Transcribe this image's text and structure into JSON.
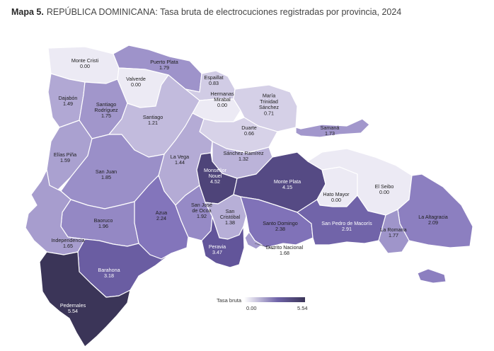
{
  "title": {
    "prefix": "Mapa 5.",
    "text": "REPÚBLICA DOMINICANA: Tasa bruta de electrocuciones registradas por provincia, 2024"
  },
  "legend": {
    "title": "Tasa bruta",
    "min": "0.00",
    "max": "5.54",
    "color_low": "#eceaf4",
    "color_high": "#3b3558"
  },
  "provinces": [
    {
      "id": "monte-cristi",
      "name": "Monte Cristi",
      "value": "0.00"
    },
    {
      "id": "puerto-plata",
      "name": "Puerto Plata",
      "value": "1.79"
    },
    {
      "id": "valverde",
      "name": "Valverde",
      "value": "0.00"
    },
    {
      "id": "espaillat",
      "name": "Espaillat",
      "value": "0.83"
    },
    {
      "id": "dajabon",
      "name": "Dajabón",
      "value": "1.49"
    },
    {
      "id": "santiago-rodriguez",
      "name": "Santiago Rodríguez",
      "value": "1.75"
    },
    {
      "id": "hermanas-mirabal",
      "name": "Hermanas Mirabal",
      "value": "0.00"
    },
    {
      "id": "maria-trinidad-sanchez",
      "name": "María Trinidad Sánchez",
      "value": "0.71"
    },
    {
      "id": "santiago",
      "name": "Santiago",
      "value": "1.21"
    },
    {
      "id": "duarte",
      "name": "Duarte",
      "value": "0.66"
    },
    {
      "id": "samana",
      "name": "Samaná",
      "value": "1.73"
    },
    {
      "id": "elias-pina",
      "name": "Elías Piña",
      "value": "1.59"
    },
    {
      "id": "la-vega",
      "name": "La Vega",
      "value": "1.44"
    },
    {
      "id": "sanchez-ramirez",
      "name": "Sánchez Ramírez",
      "value": "1.32"
    },
    {
      "id": "monsenor-nouel",
      "name": "Monseñor Nouel",
      "value": "4.52"
    },
    {
      "id": "san-juan",
      "name": "San Juan",
      "value": "1.85"
    },
    {
      "id": "monte-plata",
      "name": "Monte Plata",
      "value": "4.15"
    },
    {
      "id": "hato-mayor",
      "name": "Hato Mayor",
      "value": "0.00"
    },
    {
      "id": "el-seibo",
      "name": "El Seibo",
      "value": "0.00"
    },
    {
      "id": "la-altagracia",
      "name": "La Altagracia",
      "value": "2.09"
    },
    {
      "id": "azua",
      "name": "Azua",
      "value": "2.24"
    },
    {
      "id": "san-jose-de-ocoa",
      "name": "San José de Ocoa",
      "value": "1.92"
    },
    {
      "id": "san-cristobal",
      "name": "San Cristóbal",
      "value": "1.38"
    },
    {
      "id": "baoruco",
      "name": "Baoruco",
      "value": "1.96"
    },
    {
      "id": "santo-domingo",
      "name": "Santo Domingo",
      "value": "2.38"
    },
    {
      "id": "san-pedro-de-macoris",
      "name": "San Pedro de Macorís",
      "value": "2.91"
    },
    {
      "id": "la-romana",
      "name": "La Romana",
      "value": "1.77"
    },
    {
      "id": "independencia",
      "name": "Independencia",
      "value": "1.65"
    },
    {
      "id": "peravia",
      "name": "Peravia",
      "value": "3.47"
    },
    {
      "id": "distrito-nacional",
      "name": "Distrito Nacional",
      "value": "1.68"
    },
    {
      "id": "barahona",
      "name": "Barahona",
      "value": "3.18"
    },
    {
      "id": "pedernales",
      "name": "Pedernales",
      "value": "5.54"
    }
  ]
}
